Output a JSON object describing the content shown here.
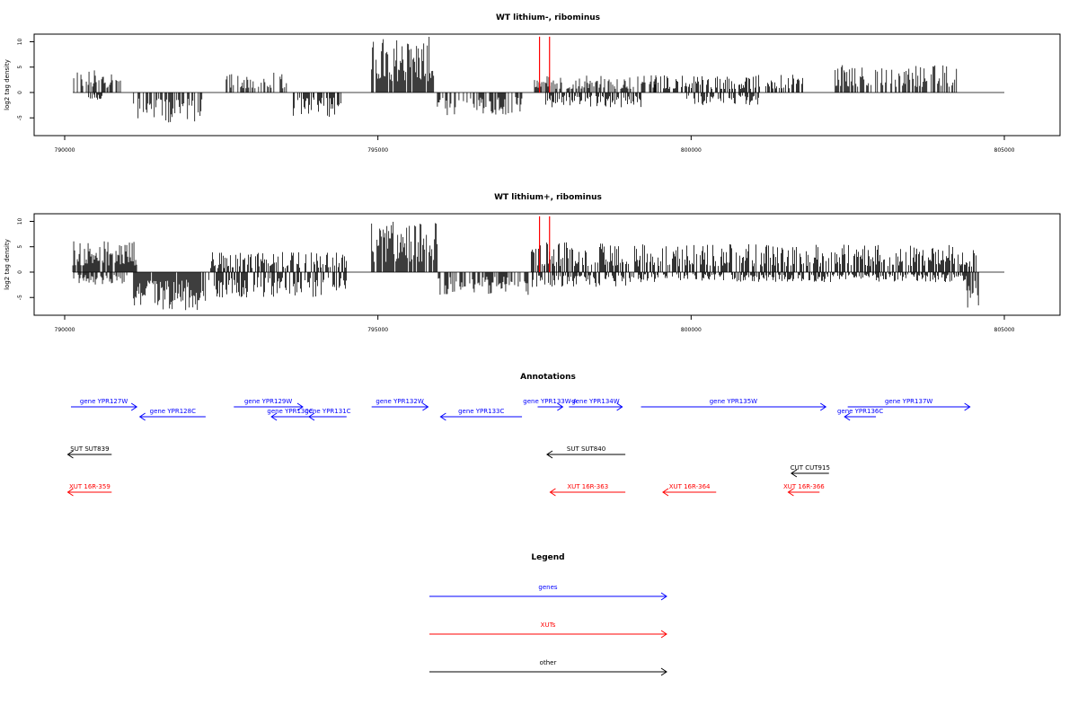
{
  "chart_data": [
    {
      "type": "bar",
      "title": "WT lithium-, ribominus",
      "ylabel": "log2 tag density",
      "xlim": [
        790000,
        805000
      ],
      "ylim": [
        -8.5,
        11.5
      ],
      "xticks": [
        "790000",
        "795000",
        "800000",
        "805000"
      ],
      "yticks": [
        "10",
        "5",
        "0",
        "-5"
      ],
      "red_markers": [
        797580,
        797740
      ],
      "segments": [
        {
          "start": 790130,
          "end": 790900,
          "strand": "+",
          "peak": 4.5
        },
        {
          "start": 790350,
          "end": 790600,
          "strand": "-",
          "peak": 1.5
        },
        {
          "start": 791100,
          "end": 792200,
          "strand": "-",
          "peak": 6.0
        },
        {
          "start": 792550,
          "end": 793550,
          "strand": "+",
          "peak": 4.0
        },
        {
          "start": 793650,
          "end": 794450,
          "strand": "-",
          "peak": 5.0
        },
        {
          "start": 794900,
          "end": 795900,
          "strand": "+",
          "peak": 11.0
        },
        {
          "start": 795950,
          "end": 797300,
          "strand": "-",
          "peak": 4.5
        },
        {
          "start": 797500,
          "end": 799450,
          "strand": "+",
          "peak": 3.5
        },
        {
          "start": 797650,
          "end": 799200,
          "strand": "-",
          "peak": 3.0
        },
        {
          "start": 799400,
          "end": 801800,
          "strand": "+",
          "peak": 3.5
        },
        {
          "start": 799900,
          "end": 801100,
          "strand": "-",
          "peak": 2.5
        },
        {
          "start": 802300,
          "end": 804250,
          "strand": "+",
          "peak": 5.5
        }
      ]
    },
    {
      "type": "bar",
      "title": "WT lithium+, ribominus",
      "ylabel": "log2 tag density",
      "xlim": [
        790000,
        805000
      ],
      "ylim": [
        -8.5,
        11.5
      ],
      "xticks": [
        "790000",
        "795000",
        "800000",
        "805000"
      ],
      "yticks": [
        "10",
        "5",
        "0",
        "-5"
      ],
      "red_markers": [
        797580,
        797740
      ],
      "segments": [
        {
          "start": 790130,
          "end": 791150,
          "strand": "+",
          "peak": 6.5
        },
        {
          "start": 790130,
          "end": 791000,
          "strand": "-",
          "peak": 2.5
        },
        {
          "start": 791100,
          "end": 792250,
          "strand": "-",
          "peak": 7.5
        },
        {
          "start": 792300,
          "end": 794500,
          "strand": "+",
          "peak": 4.0
        },
        {
          "start": 792300,
          "end": 794500,
          "strand": "-",
          "peak": 5.0
        },
        {
          "start": 794900,
          "end": 795950,
          "strand": "+",
          "peak": 10.0
        },
        {
          "start": 795950,
          "end": 797400,
          "strand": "-",
          "peak": 4.5
        },
        {
          "start": 797450,
          "end": 799000,
          "strand": "+",
          "peak": 6.0
        },
        {
          "start": 797450,
          "end": 799100,
          "strand": "-",
          "peak": 3.0
        },
        {
          "start": 799100,
          "end": 804550,
          "strand": "+",
          "peak": 5.5
        },
        {
          "start": 799100,
          "end": 804400,
          "strand": "-",
          "peak": 2.0
        },
        {
          "start": 804400,
          "end": 804600,
          "strand": "-",
          "peak": 8.0
        }
      ]
    }
  ],
  "annotations": {
    "title": "Annotations",
    "colors": {
      "gene": "#0000ff",
      "xut": "#ff0000",
      "other": "#000000"
    },
    "features": [
      {
        "label": "gene YPR127W",
        "start": 790100,
        "end": 791150,
        "dir": "+",
        "kind": "gene",
        "row": 0
      },
      {
        "label": "gene YPR128C",
        "start": 791200,
        "end": 792250,
        "dir": "-",
        "kind": "gene",
        "row": 1
      },
      {
        "label": "gene YPR129W",
        "start": 792700,
        "end": 793800,
        "dir": "+",
        "kind": "gene",
        "row": 0
      },
      {
        "label": "gene YPR130C",
        "start": 793300,
        "end": 793900,
        "dir": "-",
        "kind": "gene",
        "row": 1
      },
      {
        "label": "gene YPR131C",
        "start": 793900,
        "end": 794500,
        "dir": "-",
        "kind": "gene",
        "row": 1
      },
      {
        "label": "gene YPR132W",
        "start": 794900,
        "end": 795800,
        "dir": "+",
        "kind": "gene",
        "row": 0
      },
      {
        "label": "gene YPR133C",
        "start": 796000,
        "end": 797300,
        "dir": "-",
        "kind": "gene",
        "row": 1
      },
      {
        "label": "gene YPR133W-A",
        "start": 797550,
        "end": 797950,
        "dir": "+",
        "kind": "gene",
        "row": 0
      },
      {
        "label": "gene YPR134W",
        "start": 798050,
        "end": 798900,
        "dir": "+",
        "kind": "gene",
        "row": 0
      },
      {
        "label": "gene YPR135W",
        "start": 799200,
        "end": 802150,
        "dir": "+",
        "kind": "gene",
        "row": 0
      },
      {
        "label": "gene YPR136C",
        "start": 802450,
        "end": 802950,
        "dir": "-",
        "kind": "gene",
        "row": 1
      },
      {
        "label": "gene YPR137W",
        "start": 802500,
        "end": 804450,
        "dir": "+",
        "kind": "gene",
        "row": 0
      },
      {
        "label": "SUT SUT839",
        "start": 790050,
        "end": 790750,
        "dir": "-",
        "kind": "other",
        "row": 2
      },
      {
        "label": "SUT SUT840",
        "start": 797700,
        "end": 798950,
        "dir": "-",
        "kind": "other",
        "row": 2
      },
      {
        "label": "CUT CUT915",
        "start": 801600,
        "end": 802200,
        "dir": "-",
        "kind": "other",
        "row": 3
      },
      {
        "label": "XUT 16R-359",
        "start": 790050,
        "end": 790750,
        "dir": "-",
        "kind": "xut",
        "row": 4
      },
      {
        "label": "XUT 16R-363",
        "start": 797750,
        "end": 798950,
        "dir": "-",
        "kind": "xut",
        "row": 4
      },
      {
        "label": "XUT 16R-364",
        "start": 799550,
        "end": 800400,
        "dir": "-",
        "kind": "xut",
        "row": 4
      },
      {
        "label": "XUT 16R-366",
        "start": 801550,
        "end": 802050,
        "dir": "-",
        "kind": "xut",
        "row": 4
      }
    ]
  },
  "legend": {
    "title": "Legend",
    "items": [
      {
        "label": "genes",
        "color": "#0000ff"
      },
      {
        "label": "XUTs",
        "color": "#ff0000"
      },
      {
        "label": "other",
        "color": "#000000"
      }
    ]
  }
}
